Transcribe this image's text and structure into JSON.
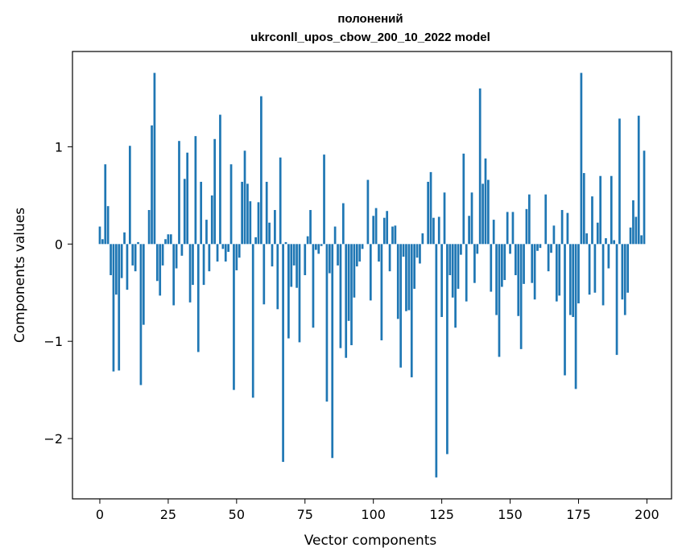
{
  "chart_data": {
    "type": "bar",
    "title_lines": [
      "полонений",
      "ukrconll_upos_cbow_200_10_2022 model"
    ],
    "xlabel": "Vector components",
    "ylabel": "Components values",
    "xlim": [
      -10,
      209
    ],
    "ylim": [
      -2.62,
      1.98
    ],
    "xticks": [
      0,
      25,
      50,
      75,
      100,
      125,
      150,
      175,
      200
    ],
    "yticks": [
      -2,
      -1,
      0,
      1
    ],
    "bar_color": "#1f77b4",
    "grid": false,
    "legend": "none",
    "values": [
      0.18,
      0.05,
      0.82,
      0.39,
      -0.32,
      -1.31,
      -0.52,
      -1.3,
      -0.35,
      0.12,
      -0.47,
      1.01,
      -0.22,
      -0.28,
      0.02,
      -1.45,
      -0.83,
      0.0,
      0.35,
      1.22,
      1.76,
      -0.38,
      -0.53,
      -0.22,
      0.05,
      0.1,
      0.1,
      -0.63,
      -0.25,
      1.06,
      -0.12,
      0.67,
      0.94,
      -0.6,
      -0.42,
      1.11,
      -1.11,
      0.64,
      -0.42,
      0.25,
      -0.28,
      0.5,
      1.08,
      -0.18,
      1.33,
      -0.05,
      -0.18,
      -0.08,
      0.82,
      -1.5,
      -0.27,
      -0.14,
      0.64,
      0.96,
      0.62,
      0.44,
      -1.58,
      0.07,
      0.43,
      1.52,
      -0.62,
      0.64,
      0.22,
      -0.23,
      0.35,
      -0.67,
      0.89,
      -2.24,
      0.02,
      -0.97,
      -0.44,
      -0.22,
      -0.45,
      -1.01,
      0.0,
      -0.32,
      0.08,
      0.35,
      -0.86,
      -0.06,
      -0.1,
      -0.02,
      0.92,
      -1.62,
      -0.3,
      -2.2,
      0.18,
      -0.22,
      -1.07,
      0.42,
      -1.17,
      -0.79,
      -1.04,
      -0.55,
      -0.23,
      -0.18,
      -0.05,
      0.0,
      0.66,
      -0.58,
      0.29,
      0.37,
      -0.18,
      -0.99,
      0.27,
      0.34,
      -0.28,
      0.18,
      0.19,
      -0.77,
      -1.27,
      -0.13,
      -0.69,
      -0.68,
      -1.37,
      -0.46,
      -0.14,
      -0.2,
      0.11,
      0.0,
      0.64,
      0.74,
      0.27,
      -2.4,
      0.28,
      -0.75,
      0.53,
      -2.16,
      -0.32,
      -0.55,
      -0.86,
      -0.46,
      -0.11,
      0.93,
      -0.59,
      0.29,
      0.53,
      -0.4,
      -0.1,
      1.6,
      0.62,
      0.88,
      0.66,
      -0.49,
      0.25,
      -0.73,
      -1.16,
      -0.44,
      -0.37,
      0.33,
      -0.1,
      0.33,
      -0.32,
      -0.74,
      -1.08,
      -0.41,
      0.36,
      0.51,
      -0.4,
      -0.57,
      -0.07,
      -0.04,
      0.0,
      0.51,
      -0.28,
      -0.09,
      0.19,
      -0.59,
      -0.53,
      0.35,
      -1.35,
      0.32,
      -0.73,
      -0.75,
      -1.49,
      -0.61,
      1.76,
      0.73,
      0.11,
      -0.52,
      0.49,
      -0.5,
      0.22,
      0.7,
      -0.63,
      0.06,
      -0.25,
      0.7,
      0.04,
      -1.14,
      1.29,
      -0.57,
      -0.73,
      -0.5,
      0.17,
      0.45,
      0.28,
      1.32,
      0.09,
      0.96
    ]
  }
}
